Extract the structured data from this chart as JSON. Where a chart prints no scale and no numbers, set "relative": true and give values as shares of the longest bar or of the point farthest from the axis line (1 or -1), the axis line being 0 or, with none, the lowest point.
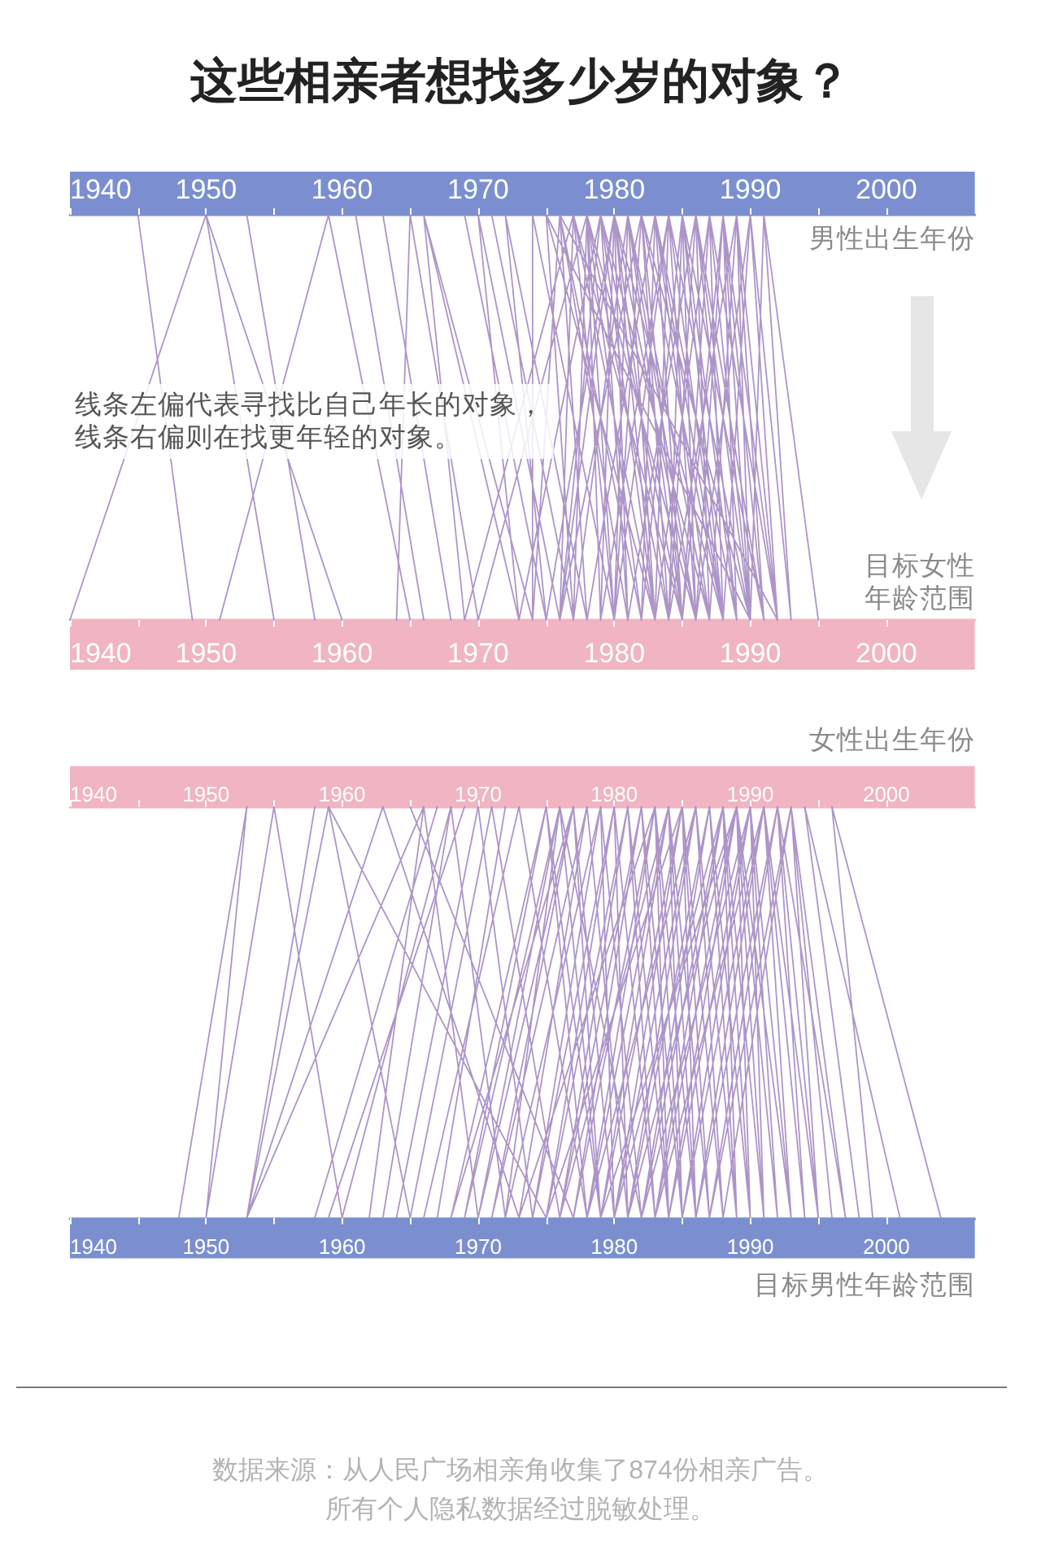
{
  "chart_data": [
    {
      "type": "line",
      "title": "这些相亲者想找多少岁的对象？",
      "x2label": "男性出生年份",
      "xlabel": "目标女性年龄范围",
      "annotations": [
        "线条左偏代表寻找比自己年长的对象，线条右偏则在找更年轻的对象。"
      ],
      "relative": true,
      "xlim": [
        1940,
        2006.5
      ],
      "xticks": [
        1940,
        {
          "value": 1945,
          "label": null
        },
        1950,
        {
          "value": 1955,
          "label": null
        },
        1960,
        {
          "value": 1965,
          "label": null
        },
        1970,
        {
          "value": 1975,
          "label": null
        },
        1980,
        {
          "value": 1985,
          "label": null
        },
        1990,
        {
          "value": 1995,
          "label": null
        },
        2000
      ],
      "x2lim": [
        1940,
        2006.5
      ],
      "x2ticks": [
        1940,
        {
          "value": 1945,
          "label": null
        },
        1950,
        {
          "value": 1955,
          "label": null
        },
        1960,
        {
          "value": 1965,
          "label": null
        },
        1970,
        {
          "value": 1975,
          "label": null
        },
        1980,
        {
          "value": 1985,
          "label": null
        },
        1990,
        {
          "value": 1995,
          "label": null
        },
        2000
      ],
      "series": [
        {
          "color": "#a48ac2",
          "x": [
            1945,
            1949,
            null,
            1940,
            1950,
            1955,
            null,
            1950,
            1960,
            null,
            1953,
            1958,
            null,
            1951,
            1959,
            1965,
            null,
            1961,
            1966,
            null,
            1963,
            1968,
            null,
            1964,
            1965,
            1970,
            null,
            1969,
            1966,
            1973,
            null,
            1966,
            1974,
            null,
            1969,
            1975,
            null,
            1973,
            1970,
            1976,
            null,
            1971,
            1977,
            null,
            1975,
            1972,
            1978,
            null,
            1974,
            1974,
            1980,
            null,
            1975,
            1990,
            null,
            1976,
            1992,
            null,
            1969,
            1977,
            null,
            1970,
            1978,
            null,
            1991,
            1995,
            null,
            1990,
            1993,
            null,
            1974,
            1976,
            1981,
            null,
            1976,
            1977,
            1983,
            null,
            1977,
            1978,
            1984,
            null,
            1976,
            1979,
            1985,
            null,
            1979,
            1980,
            1986,
            null,
            1981,
            1980,
            1988,
            null,
            1980,
            1981,
            1987,
            null,
            1980,
            1982,
            1988,
            null,
            1982,
            1983,
            1989,
            null,
            1983,
            1984,
            1990,
            null,
            1980,
            1984,
            1988,
            null,
            1984,
            1985,
            1991,
            null,
            1984,
            1986,
            1990,
            null,
            1985,
            1987,
            1992,
            null,
            1986,
            1988,
            1991,
            null,
            1987,
            1989,
            1992,
            null,
            1988,
            1990,
            1992,
            null,
            1990,
            1991,
            1993,
            null,
            1977,
            1975,
            1983,
            null,
            1980,
            1977,
            1985,
            null,
            1979,
            1978,
            1982,
            null,
            1981,
            1979,
            1987,
            null,
            1983,
            1981,
            1986,
            null,
            1984,
            1982,
            1990,
            null,
            1985,
            1983,
            1988,
            null,
            1986,
            1985,
            1989,
            null,
            1987,
            1986,
            1991,
            null,
            1988,
            1987,
            1990,
            null,
            1989,
            1988,
            1992,
            null,
            1990,
            1989,
            1991,
            null,
            1978,
            1976,
            1982,
            null,
            1980,
            1978,
            1986,
            null,
            1975,
            1980,
            1984,
            null,
            1976,
            1982,
            1985,
            null,
            1973,
            1979,
            1983,
            null,
            1978,
            1983,
            1987,
            null,
            1982,
            1985,
            1988,
            null,
            1985,
            1988,
            1990,
            null,
            1986,
            1990,
            1992,
            null,
            1979,
            1984,
            1986,
            null,
            1981,
            1986,
            1989,
            null,
            1983,
            1987,
            1990,
            null,
            1984,
            1989,
            1991,
            null,
            1977,
            1981,
            1985,
            null,
            1976,
            1980,
            1983
          ],
          "values": [
            1,
            0,
            null,
            0,
            1,
            0,
            null,
            1,
            0,
            null,
            1,
            0,
            null,
            0,
            1,
            0,
            null,
            1,
            0,
            null,
            1,
            0,
            null,
            0,
            1,
            0,
            null,
            0,
            1,
            0,
            null,
            1,
            0,
            null,
            1,
            0,
            null,
            0,
            1,
            0,
            null,
            1,
            0,
            null,
            0,
            1,
            0,
            null,
            0,
            1,
            0,
            null,
            1,
            0,
            null,
            1,
            0,
            null,
            0,
            1,
            null,
            0,
            1,
            null,
            1,
            0,
            null,
            1,
            0,
            null,
            0,
            1,
            0,
            null,
            0,
            1,
            0,
            null,
            0,
            1,
            0,
            null,
            0,
            1,
            0,
            null,
            0,
            1,
            0,
            null,
            0,
            1,
            0,
            null,
            0,
            1,
            0,
            null,
            0,
            1,
            0,
            null,
            0,
            1,
            0,
            null,
            0,
            1,
            0,
            null,
            0,
            1,
            0,
            null,
            0,
            1,
            0,
            null,
            0,
            1,
            0,
            null,
            0,
            1,
            0,
            null,
            0,
            1,
            0,
            null,
            0,
            1,
            0,
            null,
            0,
            1,
            0,
            null,
            0,
            1,
            0,
            null,
            0,
            1,
            0,
            null,
            0,
            1,
            0,
            null,
            0,
            1,
            0,
            null,
            0,
            1,
            0,
            null,
            0,
            1,
            0,
            null,
            0,
            1,
            0,
            null,
            0,
            1,
            0,
            null,
            0,
            1,
            0,
            null,
            0,
            1,
            0,
            null,
            0,
            1,
            0,
            null,
            0,
            1,
            0,
            null,
            0,
            1,
            0,
            null,
            0,
            1,
            0,
            null,
            0,
            1,
            0,
            null,
            0,
            1,
            0,
            null,
            0,
            1,
            0,
            null,
            0,
            1,
            0,
            null,
            0,
            1,
            0,
            null,
            0,
            1,
            0,
            null,
            0,
            1,
            0,
            null,
            0,
            1,
            0,
            null,
            0,
            1,
            0,
            null,
            0,
            1,
            0,
            null,
            0,
            1,
            0,
            null,
            0,
            1,
            0,
            null,
            0,
            1,
            0,
            null,
            0,
            1,
            0
          ]
        }
      ]
    },
    {
      "type": "line",
      "x2label": "女性出生年份",
      "xlabel": "目标男性年龄范围",
      "annotations": [
        "数据来源：从人民广场相亲角收集了874份相亲广告。",
        "所有个人隐私数据经过脱敏处理。"
      ],
      "relative": true,
      "xlim": [
        1940,
        2006.5
      ],
      "xticks": [
        1940,
        {
          "value": 1945,
          "label": null
        },
        1950,
        {
          "value": 1955,
          "label": null
        },
        1960,
        {
          "value": 1965,
          "label": null
        },
        1970,
        {
          "value": 1975,
          "label": null
        },
        1980,
        {
          "value": 1985,
          "label": null
        },
        1990,
        {
          "value": 1995,
          "label": null
        },
        2000
      ],
      "x2lim": [
        1940,
        2006.5
      ],
      "x2ticks": [
        1940,
        {
          "value": 1945,
          "label": null
        },
        1950,
        {
          "value": 1955,
          "label": null
        },
        1960,
        {
          "value": 1965,
          "label": null
        },
        1970,
        {
          "value": 1975,
          "label": null
        },
        1980,
        {
          "value": 1985,
          "label": null
        },
        1990,
        {
          "value": 1995,
          "label": null
        },
        2000
      ],
      "series": [
        {
          "color": "#a48ac2",
          "x": [
            1948,
            1953,
            1950,
            null,
            1950,
            1955,
            1960,
            null,
            1953,
            1958,
            null,
            1953,
            1959,
            1965,
            null,
            1959,
            1975,
            null,
            1953,
            1963,
            null,
            1953,
            1966,
            null,
            1958,
            1967,
            null,
            1959,
            1969,
            null,
            1960,
            1968,
            null,
            1962,
            1966,
            1970,
            null,
            1963,
            1968,
            1972,
            null,
            1964,
            1970,
            1974,
            null,
            1965,
            1971,
            1976,
            null,
            1966,
            1973,
            1978,
            null,
            1967,
            1972,
            null,
            1968,
            1975,
            1979,
            null,
            1969,
            1976,
            null,
            1963,
            1973,
            null,
            1965,
            1977,
            null,
            1970,
            1977,
            1980,
            null,
            1971,
            1978,
            null,
            1972,
            1976,
            1982,
            null,
            1994,
            1998,
            null,
            1994,
            2001,
            null,
            1996,
            1999,
            null,
            1996,
            2004,
            null,
            1993,
            1997,
            null,
            1992,
            1997,
            null,
            1973,
            1978,
            1981,
            null,
            1974,
            1979,
            1982,
            null,
            1975,
            1980,
            1983,
            null,
            1976,
            1981,
            1984,
            null,
            1976,
            1982,
            1985,
            null,
            1977,
            1983,
            1986,
            null,
            1978,
            1984,
            1987,
            null,
            1979,
            1985,
            1988,
            null,
            1980,
            1986,
            1989,
            null,
            1981,
            1987,
            1990,
            null,
            1982,
            1988,
            1991,
            null,
            1983,
            1989,
            1992,
            null,
            1984,
            1990,
            1993,
            null,
            1985,
            1991,
            1994,
            null,
            1986,
            1992,
            1995,
            null,
            1987,
            1993,
            1996,
            null,
            1972,
            1979,
            1980,
            null,
            1974,
            1980,
            1981,
            null,
            1975,
            1981,
            1983,
            null,
            1977,
            1982,
            1984,
            null,
            1978,
            1983,
            1985,
            null,
            1979,
            1984,
            1986,
            null,
            1980,
            1985,
            1987,
            null,
            1981,
            1986,
            1988,
            null,
            1982,
            1987,
            1989,
            null,
            1983,
            1988,
            1990,
            null,
            1984,
            1989,
            1991,
            null,
            1985,
            1990,
            1992,
            null,
            1986,
            1991,
            1993,
            null,
            1987,
            1992,
            1994,
            null,
            1988,
            1993,
            1995,
            null,
            1970,
            1976,
            1979,
            null,
            1971,
            1977,
            1980,
            null,
            1976,
            1984,
            1985,
            null,
            1978,
            1986,
            1988,
            null,
            1980,
            1988,
            1989,
            null,
            1982,
            1990,
            1991,
            null,
            1975,
            1985,
            1986,
            null,
            1979,
            1989,
            1990,
            null,
            1969,
            1975,
            1978,
            null,
            1968,
            1977,
            1979,
            null,
            1973,
            1983,
            1984,
            null,
            1981,
            1989,
            1993,
            null,
            1983,
            1991,
            1995
          ],
          "values": [
            0,
            1,
            0,
            null,
            0,
            1,
            0,
            null,
            0,
            1,
            null,
            0,
            1,
            0,
            null,
            1,
            0,
            null,
            0,
            1,
            null,
            0,
            1,
            null,
            0,
            1,
            null,
            0,
            1,
            null,
            0,
            1,
            null,
            0,
            1,
            0,
            null,
            0,
            1,
            0,
            null,
            0,
            1,
            0,
            null,
            0,
            1,
            0,
            null,
            0,
            1,
            0,
            null,
            0,
            1,
            null,
            0,
            1,
            0,
            null,
            0,
            1,
            null,
            1,
            0,
            null,
            1,
            0,
            null,
            0,
            1,
            0,
            null,
            0,
            1,
            null,
            0,
            1,
            0,
            null,
            1,
            0,
            null,
            1,
            0,
            null,
            1,
            0,
            null,
            1,
            0,
            null,
            1,
            0,
            null,
            1,
            0,
            null,
            0,
            1,
            0,
            null,
            0,
            1,
            0,
            null,
            0,
            1,
            0,
            null,
            0,
            1,
            0,
            null,
            0,
            1,
            0,
            null,
            0,
            1,
            0,
            null,
            0,
            1,
            0,
            null,
            0,
            1,
            0,
            null,
            0,
            1,
            0,
            null,
            0,
            1,
            0,
            null,
            0,
            1,
            0,
            null,
            0,
            1,
            0,
            null,
            0,
            1,
            0,
            null,
            0,
            1,
            0,
            null,
            0,
            1,
            0,
            null,
            0,
            1,
            0,
            null,
            0,
            1,
            0,
            null,
            0,
            1,
            0,
            null,
            0,
            1,
            0,
            null,
            0,
            1,
            0,
            null,
            0,
            1,
            0,
            null,
            0,
            1,
            0,
            null,
            0,
            1,
            0,
            null,
            0,
            1,
            0,
            null,
            0,
            1,
            0,
            null,
            0,
            1,
            0,
            null,
            0,
            1,
            0,
            null,
            0,
            1,
            0,
            null,
            0,
            1,
            0,
            null,
            0,
            1,
            0,
            null,
            0,
            1,
            0,
            null,
            0,
            1,
            0,
            null,
            0,
            1,
            0,
            null,
            0,
            1,
            0,
            null,
            0,
            1,
            0,
            null,
            0,
            1,
            0,
            null,
            0,
            1,
            0,
            null,
            0,
            1,
            0,
            null,
            0,
            1,
            0,
            null,
            0,
            1,
            0,
            null,
            0,
            1,
            0,
            null,
            0,
            1,
            0,
            null,
            0,
            1,
            0,
            null,
            0,
            1,
            0
          ]
        }
      ]
    }
  ]
}
